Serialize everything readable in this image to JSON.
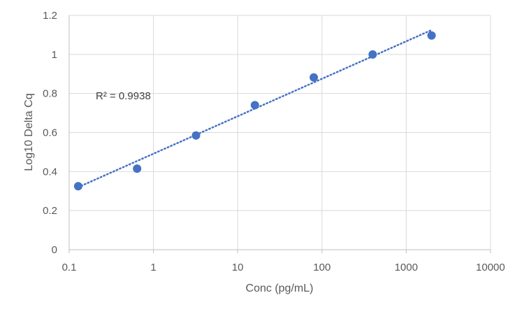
{
  "chart_data": {
    "type": "scatter",
    "x_scale": "log",
    "xlabel": "Conc (pg/mL)",
    "ylabel": "Log10 Delta Cq",
    "xlim": [
      0.1,
      10000
    ],
    "ylim": [
      0,
      1.2
    ],
    "x_ticks": [
      "0.1",
      "1",
      "10",
      "100",
      "1000",
      "10000"
    ],
    "y_ticks": [
      "0",
      "0.2",
      "0.4",
      "0.6",
      "0.8",
      "1",
      "1.2"
    ],
    "grid": true,
    "legend": "none",
    "series": [
      {
        "x": [
          0.128,
          0.64,
          3.2,
          16,
          80,
          400,
          2000
        ],
        "y": [
          0.325,
          0.415,
          0.585,
          0.74,
          0.882,
          1.0,
          1.097
        ],
        "color": "#4472C4"
      }
    ],
    "trendline": {
      "type": "logarithmic",
      "color": "#4472C4",
      "style": "dotted",
      "x_start": 0.128,
      "y_start": 0.32,
      "x_end": 2000,
      "y_end": 1.125
    },
    "annotation": "R² = 0.9938"
  }
}
